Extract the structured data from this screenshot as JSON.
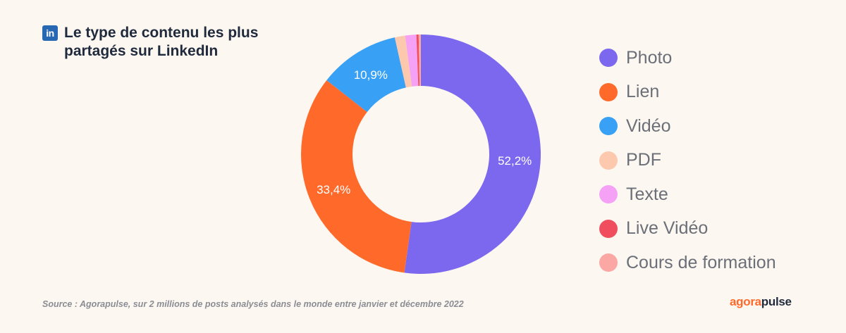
{
  "header": {
    "logo_text": "in",
    "title": "Le type de contenu les plus partagés sur LinkedIn"
  },
  "chart_data": {
    "type": "pie",
    "donut": true,
    "categories": [
      "Photo",
      "Lien",
      "Vidéo",
      "PDF",
      "Texte",
      "Live Vidéo",
      "Cours de formation"
    ],
    "values": [
      52.2,
      33.4,
      10.9,
      1.4,
      1.5,
      0.3,
      0.3
    ],
    "data_labels": [
      "52,2%",
      "33,4%",
      "10,9%",
      "",
      "",
      "",
      ""
    ],
    "colors": [
      "#7B68EE",
      "#FF6A2B",
      "#38A1F5",
      "#FCC9AE",
      "#F5A1F5",
      "#F04E5E",
      "#FBA7A3"
    ],
    "legend": "right"
  },
  "footer": {
    "source": "Source : Agorapulse, sur 2 millions de posts analysés dans le monde entre janvier et décembre 2022",
    "brand_part1": "agora",
    "brand_part2": "pulse"
  }
}
